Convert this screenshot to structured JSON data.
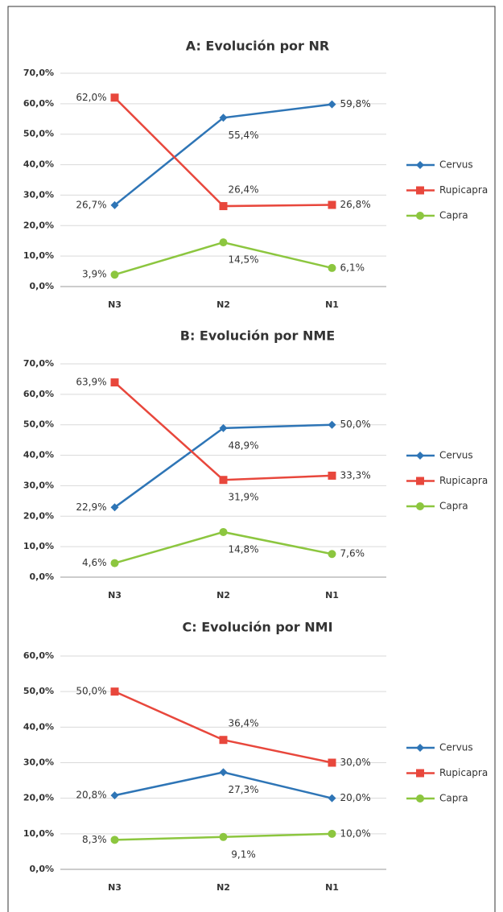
{
  "chart_data": [
    {
      "type": "line",
      "title": "A: Evolución por NR",
      "categories": [
        "N3",
        "N2",
        "N1"
      ],
      "series": [
        {
          "name": "Cervus",
          "color": "#2e75b6",
          "marker": "diamond",
          "values": [
            26.7,
            55.4,
            59.8
          ],
          "value_labels": [
            "26,7%",
            "55,4%",
            "59,8%"
          ]
        },
        {
          "name": "Rupicapra",
          "color": "#e8473c",
          "marker": "square",
          "values": [
            62.0,
            26.4,
            26.8
          ],
          "value_labels": [
            "62,0%",
            "26,4%",
            "26,8%"
          ]
        },
        {
          "name": "Capra",
          "color": "#8cc63f",
          "marker": "circle",
          "values": [
            3.9,
            14.5,
            6.1
          ],
          "value_labels": [
            "3,9%",
            "14,5%",
            "6,1%"
          ]
        }
      ],
      "ylim": [
        0,
        70
      ],
      "yticks": [
        {
          "value": 0,
          "label": "0,0%"
        },
        {
          "value": 10,
          "label": "10,0%"
        },
        {
          "value": 20,
          "label": "20,0%"
        },
        {
          "value": 30,
          "label": "30,0%"
        },
        {
          "value": 40,
          "label": "40,0%"
        },
        {
          "value": 50,
          "label": "50,0%"
        },
        {
          "value": 60,
          "label": "60,0%"
        },
        {
          "value": 70,
          "label": "70,0%"
        }
      ],
      "grid": true,
      "legend": "right"
    },
    {
      "type": "line",
      "title": "B: Evolución por NME",
      "categories": [
        "N3",
        "N2",
        "N1"
      ],
      "series": [
        {
          "name": "Cervus",
          "color": "#2e75b6",
          "marker": "diamond",
          "values": [
            22.9,
            48.9,
            50.0
          ],
          "value_labels": [
            "22,9%",
            "48,9%",
            "50,0%"
          ]
        },
        {
          "name": "Rupicapra",
          "color": "#e8473c",
          "marker": "square",
          "values": [
            63.9,
            31.9,
            33.3
          ],
          "value_labels": [
            "63,9%",
            "31,9%",
            "33,3%"
          ]
        },
        {
          "name": "Capra",
          "color": "#8cc63f",
          "marker": "circle",
          "values": [
            4.6,
            14.8,
            7.6
          ],
          "value_labels": [
            "4,6%",
            "14,8%",
            "7,6%"
          ]
        }
      ],
      "ylim": [
        0,
        70
      ],
      "yticks": [
        {
          "value": 0,
          "label": "0,0%"
        },
        {
          "value": 10,
          "label": "10,0%"
        },
        {
          "value": 20,
          "label": "20,0%"
        },
        {
          "value": 30,
          "label": "30,0%"
        },
        {
          "value": 40,
          "label": "40,0%"
        },
        {
          "value": 50,
          "label": "50,0%"
        },
        {
          "value": 60,
          "label": "60,0%"
        },
        {
          "value": 70,
          "label": "70,0%"
        }
      ],
      "grid": true,
      "legend": "right"
    },
    {
      "type": "line",
      "title": "C: Evolución por NMI",
      "categories": [
        "N3",
        "N2",
        "N1"
      ],
      "series": [
        {
          "name": "Cervus",
          "color": "#2e75b6",
          "marker": "diamond",
          "values": [
            20.8,
            27.3,
            20.0
          ],
          "value_labels": [
            "20,8%",
            "27,3%",
            "20,0%"
          ]
        },
        {
          "name": "Rupicapra",
          "color": "#e8473c",
          "marker": "square",
          "values": [
            50.0,
            36.4,
            30.0
          ],
          "value_labels": [
            "50,0%",
            "36,4%",
            "30,0%"
          ]
        },
        {
          "name": "Capra",
          "color": "#8cc63f",
          "marker": "circle",
          "values": [
            8.3,
            9.1,
            10.0
          ],
          "value_labels": [
            "8,3%",
            "9,1%",
            "10,0%"
          ]
        }
      ],
      "ylim": [
        0,
        60
      ],
      "yticks": [
        {
          "value": 0,
          "label": "0,0%"
        },
        {
          "value": 10,
          "label": "10,0%"
        },
        {
          "value": 20,
          "label": "20,0%"
        },
        {
          "value": 30,
          "label": "30,0%"
        },
        {
          "value": 40,
          "label": "40,0%"
        },
        {
          "value": 50,
          "label": "50,0%"
        },
        {
          "value": 60,
          "label": "60,0%"
        }
      ],
      "grid": true,
      "legend": "right"
    }
  ]
}
